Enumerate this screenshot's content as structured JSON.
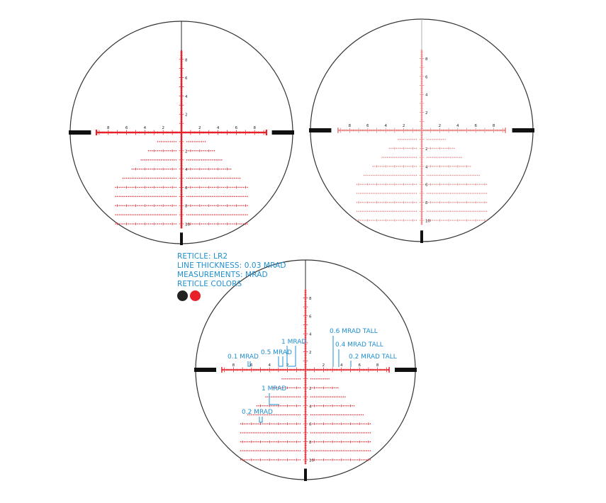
{
  "colors": {
    "black": "#111111",
    "red": "#e8202a",
    "red_faint": "#e8807f",
    "label_blue": "#1e8fcf",
    "circle_outline": "#333333"
  },
  "info": {
    "reticle": "RETICLE: LR2",
    "line_thickness": "LINE THICKNESS: 0.03 MRAD",
    "measurements": "MEASUREMENTS: MRAD",
    "reticle_colors": "RETICLE COLORS",
    "swatches": [
      {
        "name": "black",
        "color": "#222222"
      },
      {
        "name": "red",
        "color": "#e8202a"
      }
    ]
  },
  "reticle": {
    "horizontal_labels": [
      "8",
      "6",
      "4",
      "2",
      "2",
      "4",
      "6",
      "8"
    ],
    "vertical_labels_up": [
      "2",
      "4",
      "6",
      "8"
    ],
    "vertical_labels_down": [
      "2",
      "4",
      "6",
      "8",
      "10"
    ]
  },
  "callouts": [
    {
      "id": "mrad01",
      "text": "0.1 MRAD"
    },
    {
      "id": "mrad05",
      "text": "0.5 MRAD"
    },
    {
      "id": "mrad1_top",
      "text": "1 MRAD"
    },
    {
      "id": "tall06",
      "text": "0.6 MRAD TALL"
    },
    {
      "id": "tall04",
      "text": "0.4 MRAD TALL"
    },
    {
      "id": "tall02",
      "text": "0.2 MRAD TALL"
    },
    {
      "id": "mrad1_lower",
      "text": "1 MRAD"
    },
    {
      "id": "mrad02",
      "text": "0.2 MRAD"
    }
  ]
}
